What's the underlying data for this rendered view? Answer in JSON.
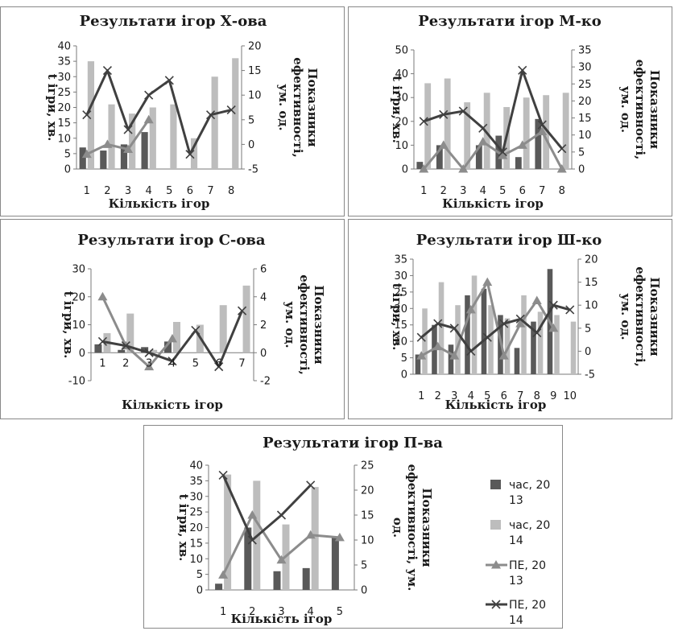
{
  "legend": {
    "items": [
      {
        "series": 0,
        "label_lines": [
          "час, 20",
          "13"
        ]
      },
      {
        "series": 1,
        "label_lines": [
          "час, 20",
          "14"
        ]
      },
      {
        "series": 2,
        "label_lines": [
          "ПЕ, 20",
          "13"
        ]
      },
      {
        "series": 3,
        "label_lines": [
          "ПЕ, 20",
          "14"
        ]
      }
    ]
  },
  "colors": {
    "bar_2013": "#595959",
    "bar_2014": "#bdbdbd",
    "line_2013": "#8c8c8c",
    "line_2014": "#404040",
    "frame": "#888888",
    "text": "#1a1a1a"
  },
  "chart_data": [
    {
      "type": "bar",
      "title": "Результати ігор Х-ова",
      "xlabel": "Кількість ігор",
      "ylabel_lines": [
        "t ігри, хв."
      ],
      "y2label_lines": [
        "Показники",
        "ефективності,",
        "ум. од."
      ],
      "categories": [
        "1",
        "2",
        "3",
        "4",
        "5",
        "6",
        "7",
        "8"
      ],
      "ylim": [
        0,
        40
      ],
      "yticks": [
        "0",
        "5",
        "10",
        "15",
        "20",
        "25",
        "30",
        "35",
        "40"
      ],
      "y2lim": [
        -5,
        20
      ],
      "y2ticks": [
        "-5",
        "0",
        "5",
        "10",
        "15",
        "20"
      ],
      "grid": false,
      "series": [
        {
          "name": "час, 2013",
          "kind": "bar",
          "values": [
            7,
            6,
            8,
            12,
            null,
            null,
            null,
            null
          ]
        },
        {
          "name": "час, 2014",
          "kind": "bar",
          "values": [
            35,
            21,
            18,
            20,
            21,
            10,
            30,
            36
          ]
        },
        {
          "name": "ПЕ, 2013",
          "kind": "line",
          "axis": "right",
          "marker": "triangle",
          "values": [
            -2,
            0,
            -1,
            5,
            null,
            null,
            null,
            null
          ]
        },
        {
          "name": "ПЕ, 2014",
          "kind": "line",
          "axis": "right",
          "marker": "x",
          "values": [
            6,
            15,
            3,
            10,
            13,
            -2,
            6,
            7
          ]
        }
      ]
    },
    {
      "type": "bar",
      "title": "Результати ігор М-ко",
      "xlabel": "Кількість ігор",
      "ylabel_lines": [
        "t ігри, хв."
      ],
      "y2label_lines": [
        "Показники",
        "ефективності,",
        "ум. од."
      ],
      "categories": [
        "1",
        "2",
        "3",
        "4",
        "5",
        "6",
        "7",
        "8"
      ],
      "ylim": [
        0,
        50
      ],
      "yticks": [
        "0",
        "10",
        "20",
        "30",
        "40",
        "50"
      ],
      "y2lim": [
        0,
        35
      ],
      "y2ticks": [
        "0",
        "5",
        "10",
        "15",
        "20",
        "25",
        "30",
        "35"
      ],
      "grid": false,
      "series": [
        {
          "name": "час, 2013",
          "kind": "bar",
          "values": [
            3,
            10,
            0,
            10,
            14,
            5,
            21,
            null
          ]
        },
        {
          "name": "час, 2014",
          "kind": "bar",
          "values": [
            36,
            38,
            28,
            32,
            26,
            30,
            31,
            32
          ]
        },
        {
          "name": "ПЕ, 2013",
          "kind": "line",
          "axis": "right",
          "marker": "triangle",
          "values": [
            0,
            7,
            0,
            8,
            4,
            7,
            11,
            0
          ]
        },
        {
          "name": "ПЕ, 2014",
          "kind": "line",
          "axis": "right",
          "marker": "x",
          "values": [
            14,
            16,
            17,
            12,
            5,
            29,
            13,
            6
          ]
        }
      ]
    },
    {
      "type": "bar",
      "title": "Результати ігор С-ова",
      "xlabel": "Кількість ігор",
      "ylabel_lines": [
        "t ігри, хв."
      ],
      "y2label_lines": [
        "Показники",
        "ефективності,",
        "ум. од."
      ],
      "categories": [
        "1",
        "2",
        "3",
        "4",
        "5",
        "6",
        "7"
      ],
      "ylim": [
        -10,
        30
      ],
      "yticks": [
        "-10",
        "0",
        "10",
        "20",
        "30"
      ],
      "y2lim": [
        -2,
        6
      ],
      "y2ticks": [
        "-2",
        "0",
        "2",
        "4",
        "6"
      ],
      "grid": false,
      "series": [
        {
          "name": "час, 2013",
          "kind": "bar",
          "values": [
            3,
            1,
            2,
            4,
            null,
            null,
            null
          ]
        },
        {
          "name": "час, 2014",
          "kind": "bar",
          "values": [
            7,
            14,
            1,
            11,
            10,
            17,
            24
          ]
        },
        {
          "name": "ПЕ, 2013",
          "kind": "line",
          "axis": "right",
          "marker": "triangle",
          "values": [
            4,
            0.5,
            -1,
            1,
            null,
            null,
            null
          ]
        },
        {
          "name": "ПЕ, 2014",
          "kind": "line",
          "axis": "right",
          "marker": "x",
          "values": [
            0.8,
            0.5,
            0,
            -0.6,
            1.6,
            -1,
            3
          ]
        }
      ]
    },
    {
      "type": "bar",
      "title": "Результати ігор Ш-ко",
      "xlabel": "Кількість ігор",
      "ylabel_lines": [
        "t ігри, хв."
      ],
      "y2label_lines": [
        "Показники",
        "ефективності,",
        "ум. од."
      ],
      "categories": [
        "1",
        "2",
        "3",
        "4",
        "5",
        "6",
        "7",
        "8",
        "9",
        "10"
      ],
      "ylim": [
        0,
        35
      ],
      "yticks": [
        "0",
        "5",
        "10",
        "15",
        "20",
        "25",
        "30",
        "35"
      ],
      "y2lim": [
        -5,
        20
      ],
      "y2ticks": [
        "-5",
        "0",
        "5",
        "10",
        "15",
        "20"
      ],
      "grid": false,
      "series": [
        {
          "name": "час, 2013",
          "kind": "bar",
          "values": [
            6,
            15,
            9,
            24,
            26,
            18,
            8,
            16,
            32,
            null
          ]
        },
        {
          "name": "час, 2014",
          "kind": "bar",
          "values": [
            20,
            28,
            21,
            30,
            21,
            17,
            24,
            19,
            18,
            16
          ]
        },
        {
          "name": "ПЕ, 2013",
          "kind": "line",
          "axis": "right",
          "marker": "triangle",
          "values": [
            -1,
            1,
            -1,
            9,
            15,
            -1,
            6,
            11,
            5,
            null
          ]
        },
        {
          "name": "ПЕ, 2014",
          "kind": "line",
          "axis": "right",
          "marker": "x",
          "values": [
            3,
            6,
            5,
            0,
            3,
            6,
            7,
            4,
            10,
            9
          ]
        }
      ]
    },
    {
      "type": "bar",
      "title": "Результати ігор П-ва",
      "xlabel": "Кількість ігор",
      "ylabel_lines": [
        "t ігри, хв."
      ],
      "y2label_lines": [
        "Показники",
        "ефективності, ум.",
        "од."
      ],
      "categories": [
        "1",
        "2",
        "3",
        "4",
        "5"
      ],
      "ylim": [
        0,
        40
      ],
      "yticks": [
        "0",
        "5",
        "10",
        "15",
        "20",
        "25",
        "30",
        "35",
        "40"
      ],
      "y2lim": [
        0,
        25
      ],
      "y2ticks": [
        "0",
        "5",
        "10",
        "15",
        "20",
        "25"
      ],
      "grid": false,
      "legend": "right",
      "series": [
        {
          "name": "час, 2013",
          "kind": "bar",
          "values": [
            2,
            20,
            6,
            7,
            17
          ]
        },
        {
          "name": "час, 2014",
          "kind": "bar",
          "values": [
            37,
            35,
            21,
            33,
            null
          ]
        },
        {
          "name": "ПЕ, 2013",
          "kind": "line",
          "axis": "right",
          "marker": "triangle",
          "values": [
            3,
            15,
            6,
            11,
            10.5
          ]
        },
        {
          "name": "ПЕ, 2014",
          "kind": "line",
          "axis": "right",
          "marker": "x",
          "values": [
            23,
            10,
            15,
            21,
            null
          ]
        }
      ]
    }
  ]
}
